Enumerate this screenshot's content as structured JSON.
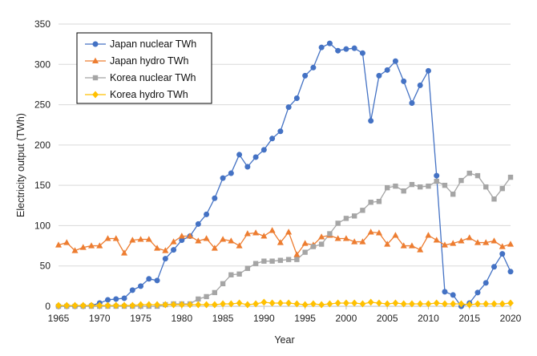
{
  "chart_data": {
    "type": "line",
    "title": "",
    "xlabel": "Year",
    "ylabel": "Electricity output (TWh)",
    "xlim": [
      1965,
      2020
    ],
    "ylim": [
      0,
      350
    ],
    "xticks": [
      1965,
      1970,
      1975,
      1980,
      1985,
      1990,
      1995,
      2000,
      2005,
      2010,
      2015,
      2020
    ],
    "yticks": [
      0,
      50,
      100,
      150,
      200,
      250,
      300,
      350
    ],
    "grid": "horizontal",
    "legend_position": "top-left",
    "x": [
      1965,
      1966,
      1967,
      1968,
      1969,
      1970,
      1971,
      1972,
      1973,
      1974,
      1975,
      1976,
      1977,
      1978,
      1979,
      1980,
      1981,
      1982,
      1983,
      1984,
      1985,
      1986,
      1987,
      1988,
      1989,
      1990,
      1991,
      1992,
      1993,
      1994,
      1995,
      1996,
      1997,
      1998,
      1999,
      2000,
      2001,
      2002,
      2003,
      2004,
      2005,
      2006,
      2007,
      2008,
      2009,
      2010,
      2011,
      2012,
      2013,
      2014,
      2015,
      2016,
      2017,
      2018,
      2019,
      2020
    ],
    "series": [
      {
        "name": "Japan nuclear TWh",
        "color": "#4472C4",
        "marker": "circle",
        "values": [
          0,
          0,
          0,
          0,
          1,
          4,
          8,
          9,
          10,
          20,
          25,
          34,
          32,
          59,
          70,
          82,
          87,
          102,
          114,
          134,
          159,
          165,
          188,
          173,
          185,
          194,
          208,
          217,
          247,
          258,
          286,
          296,
          321,
          326,
          317,
          319,
          320,
          314,
          230,
          286,
          293,
          304,
          279,
          252,
          274,
          292,
          162,
          18,
          14,
          0,
          4,
          17,
          29,
          49,
          65,
          43
        ]
      },
      {
        "name": "Japan hydro TWh",
        "color": "#ED7D31",
        "marker": "triangle",
        "values": [
          76,
          79,
          69,
          73,
          75,
          75,
          84,
          84,
          66,
          82,
          83,
          83,
          72,
          69,
          80,
          87,
          87,
          81,
          84,
          72,
          83,
          81,
          75,
          90,
          91,
          87,
          94,
          79,
          92,
          64,
          78,
          76,
          86,
          88,
          84,
          84,
          80,
          80,
          92,
          91,
          77,
          88,
          75,
          75,
          70,
          88,
          82,
          76,
          78,
          81,
          85,
          79,
          79,
          81,
          74,
          77
        ]
      },
      {
        "name": "Korea nuclear TWh",
        "color": "#A5A5A5",
        "marker": "square",
        "values": [
          0,
          0,
          0,
          0,
          0,
          0,
          0,
          0,
          0,
          0,
          0,
          0,
          0,
          2,
          3,
          3,
          3,
          9,
          12,
          17,
          28,
          39,
          40,
          47,
          53,
          56,
          56,
          57,
          58,
          58,
          67,
          74,
          77,
          90,
          103,
          109,
          112,
          119,
          129,
          130,
          147,
          149,
          143,
          151,
          148,
          149,
          155,
          150,
          139,
          156,
          165,
          162,
          148,
          133,
          146,
          160
        ]
      },
      {
        "name": "Korea hydro TWh",
        "color": "#FFC000",
        "marker": "diamond",
        "values": [
          1,
          1,
          1,
          1,
          1,
          1,
          1,
          1,
          1,
          1,
          2,
          2,
          2,
          2,
          2,
          2,
          2,
          2,
          2,
          2,
          3,
          3,
          4,
          2,
          3,
          5,
          4,
          4,
          4,
          3,
          2,
          3,
          2,
          3,
          4,
          4,
          4,
          3,
          5,
          4,
          3,
          4,
          3,
          3,
          3,
          3,
          4,
          3,
          3,
          3,
          2,
          3,
          3,
          3,
          3,
          4
        ]
      }
    ]
  }
}
